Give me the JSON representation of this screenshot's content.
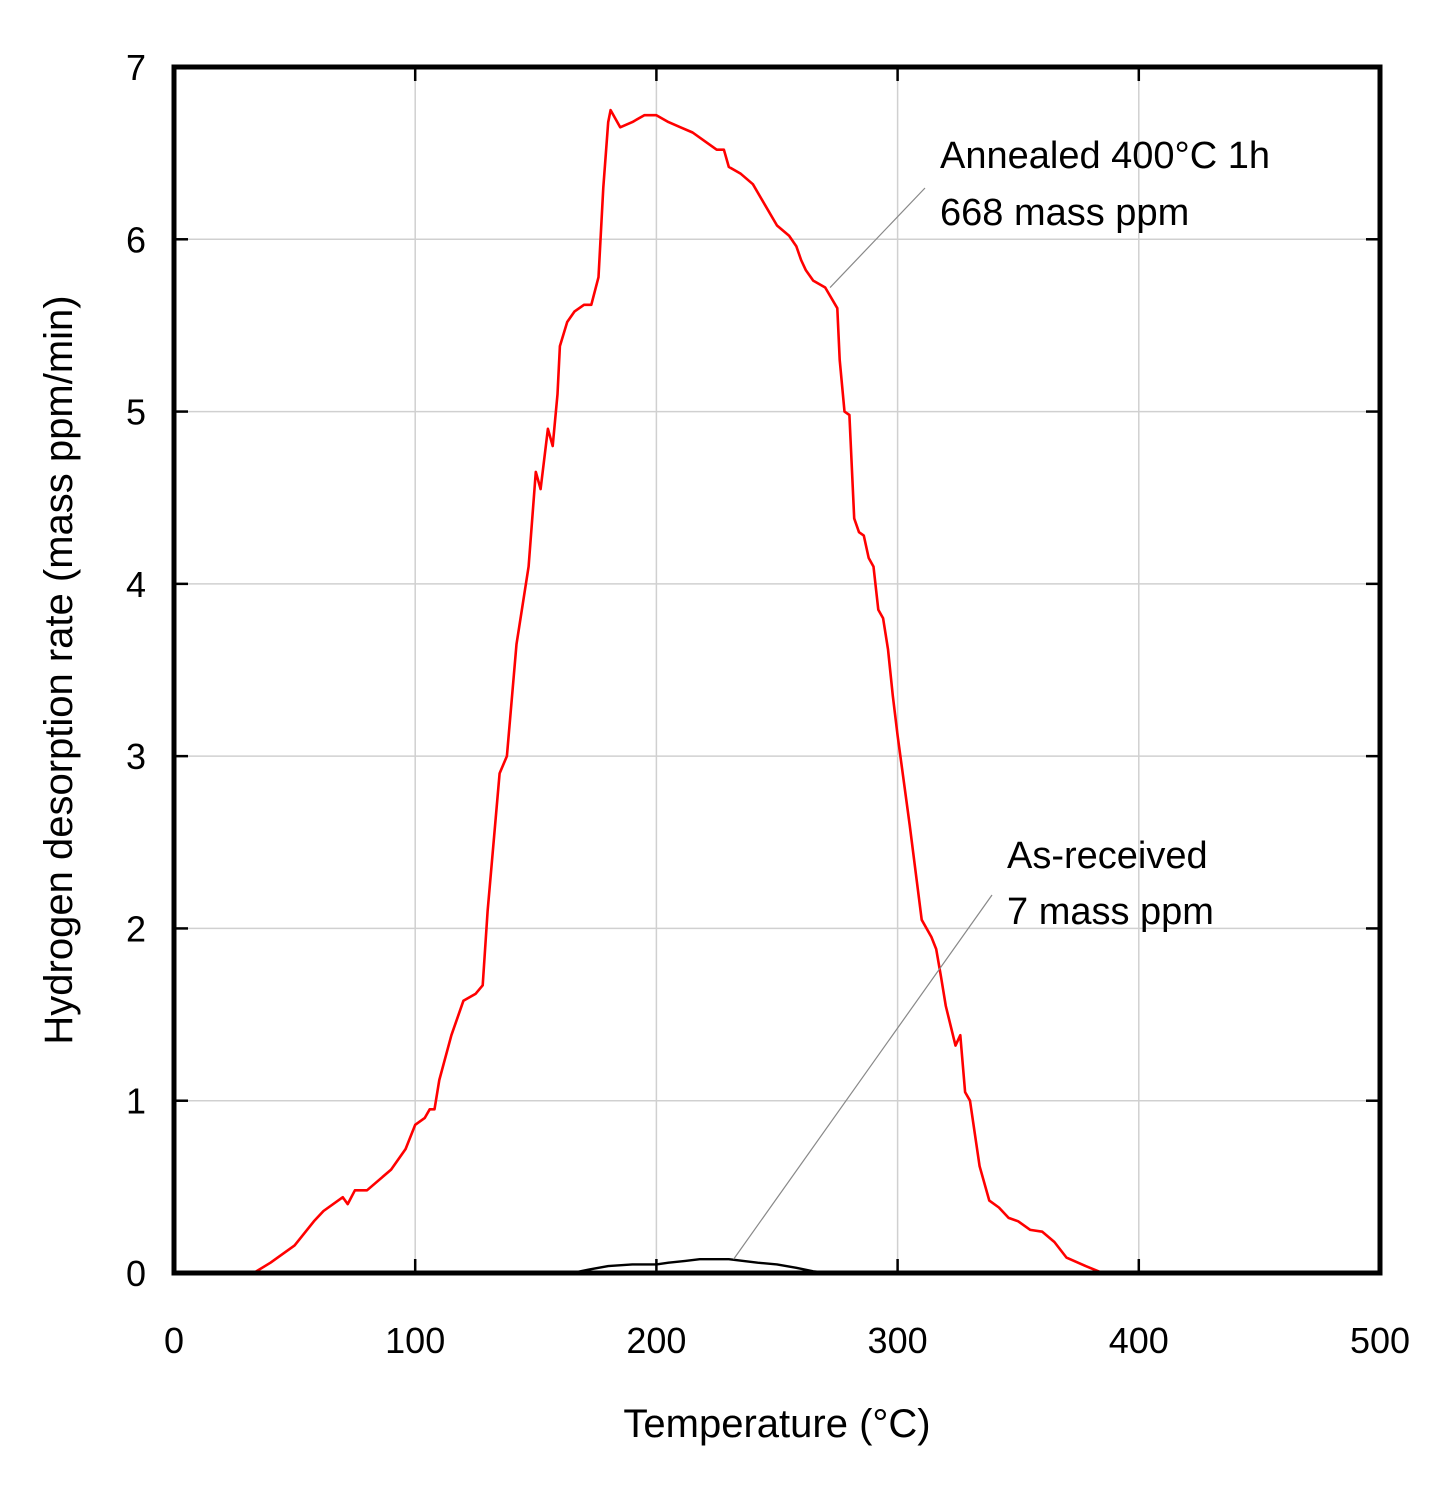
{
  "chart_data": {
    "type": "line",
    "title": "",
    "xlabel": "Temperature (°C)",
    "ylabel": "Hydrogen desorption rate (mass ppm/min)",
    "xlim": [
      0,
      500
    ],
    "ylim": [
      0,
      7
    ],
    "xticks": [
      0,
      100,
      200,
      300,
      400,
      500
    ],
    "yticks": [
      0,
      1,
      2,
      3,
      4,
      5,
      6,
      7
    ],
    "grid": true,
    "colors": {
      "annealed": "#ff0000",
      "as_received": "#000000",
      "leader": "#888888"
    },
    "series": [
      {
        "name": "Annealed 400°C 1h",
        "color": "#ff0000",
        "x": [
          33,
          40,
          50,
          58,
          62,
          70,
          72,
          75,
          80,
          90,
          96,
          100,
          104,
          106,
          108,
          110,
          115,
          120,
          125,
          128,
          130,
          135,
          138,
          142,
          147,
          150,
          152,
          155,
          157,
          159,
          160,
          163,
          166,
          170,
          173,
          176,
          178,
          180,
          181,
          185,
          190,
          195,
          200,
          205,
          210,
          215,
          220,
          225,
          228,
          230,
          235,
          240,
          245,
          250,
          255,
          258,
          260,
          262,
          265,
          270,
          275,
          276,
          278,
          280,
          282,
          284,
          286,
          288,
          290,
          292,
          294,
          296,
          298,
          300,
          305,
          310,
          314,
          316,
          318,
          320,
          324,
          326,
          328,
          330,
          334,
          338,
          342,
          346,
          350,
          355,
          360,
          365,
          370,
          378,
          385,
          400,
          420
        ],
        "y": [
          0.0,
          0.06,
          0.16,
          0.3,
          0.36,
          0.44,
          0.4,
          0.48,
          0.48,
          0.6,
          0.72,
          0.86,
          0.9,
          0.95,
          0.95,
          1.12,
          1.38,
          1.58,
          1.62,
          1.67,
          2.1,
          2.9,
          3.0,
          3.65,
          4.1,
          4.65,
          4.55,
          4.9,
          4.8,
          5.1,
          5.38,
          5.52,
          5.58,
          5.62,
          5.62,
          5.78,
          6.3,
          6.68,
          6.75,
          6.65,
          6.68,
          6.72,
          6.72,
          6.68,
          6.65,
          6.62,
          6.57,
          6.52,
          6.52,
          6.42,
          6.38,
          6.32,
          6.2,
          6.08,
          6.02,
          5.96,
          5.88,
          5.82,
          5.76,
          5.72,
          5.6,
          5.3,
          5.0,
          4.98,
          4.38,
          4.3,
          4.28,
          4.15,
          4.1,
          3.85,
          3.8,
          3.62,
          3.35,
          3.12,
          2.6,
          2.05,
          1.95,
          1.88,
          1.72,
          1.55,
          1.32,
          1.38,
          1.05,
          1.0,
          0.62,
          0.42,
          0.38,
          0.32,
          0.3,
          0.25,
          0.24,
          0.18,
          0.09,
          0.04,
          0.0,
          0.0,
          0.0
        ]
      },
      {
        "name": "As-received",
        "color": "#000000",
        "x": [
          150,
          165,
          172,
          180,
          190,
          200,
          205,
          212,
          218,
          222,
          226,
          230,
          236,
          242,
          250,
          258,
          265,
          272
        ],
        "y": [
          0.0,
          0.0,
          0.02,
          0.04,
          0.05,
          0.05,
          0.06,
          0.07,
          0.08,
          0.08,
          0.08,
          0.08,
          0.07,
          0.06,
          0.05,
          0.03,
          0.01,
          0.0
        ]
      }
    ],
    "annotations": [
      {
        "series": "Annealed 400°C 1h",
        "lines": [
          "Annealed 400°C 1h",
          "668 mass ppm"
        ]
      },
      {
        "series": "As-received",
        "lines": [
          "As-received",
          "7 mass ppm"
        ]
      }
    ]
  }
}
